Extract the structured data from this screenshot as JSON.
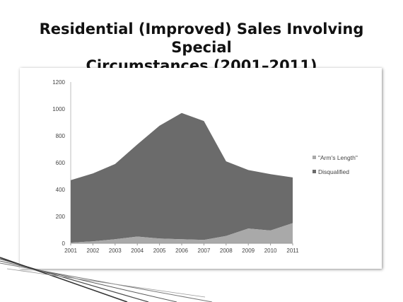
{
  "slide": {
    "title_line1": "Residential (Improved) Sales Involving Special",
    "title_line2": "Circumstances (2001–2011)"
  },
  "colors": {
    "disqualified": "#6b6b6b",
    "arms_length": "#a9a9a9"
  },
  "chart_data": {
    "type": "area",
    "stacked": true,
    "title": "",
    "xlabel": "",
    "ylabel": "",
    "x": [
      2001,
      2002,
      2003,
      2004,
      2005,
      2006,
      2007,
      2008,
      2009,
      2010,
      2011
    ],
    "ylim": [
      0,
      1200
    ],
    "yticks": [
      "0",
      "200",
      "400",
      "600",
      "800",
      "1000",
      "1200"
    ],
    "xticks": [
      "2001",
      "2002",
      "2003",
      "2004",
      "2005",
      "2006",
      "2007",
      "2008",
      "2009",
      "2010",
      "2011"
    ],
    "grid": false,
    "legend_position": "right",
    "series": [
      {
        "name": "\"Arm's Length\"",
        "values": [
          5,
          15,
          30,
          50,
          35,
          30,
          25,
          55,
          110,
          95,
          150
        ]
      },
      {
        "name": "Disqualified",
        "values": [
          465,
          505,
          560,
          685,
          840,
          940,
          885,
          555,
          435,
          420,
          340
        ]
      }
    ]
  }
}
